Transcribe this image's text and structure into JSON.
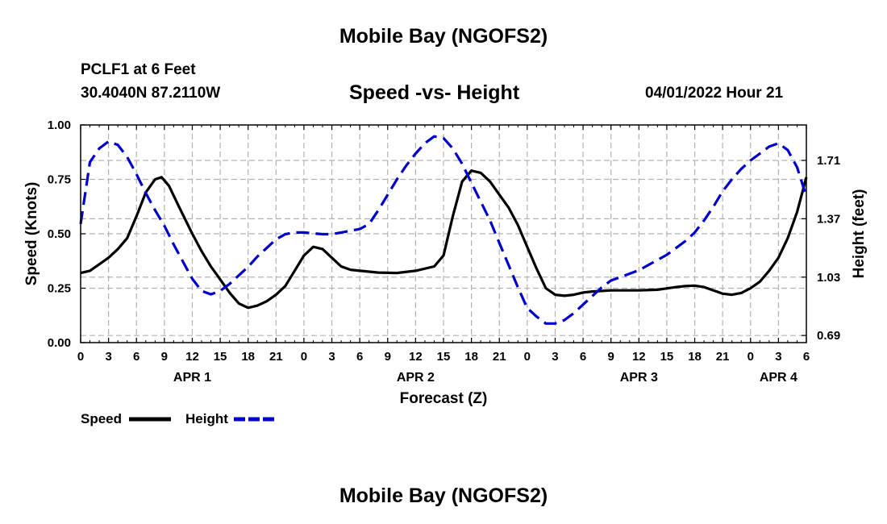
{
  "page": {
    "title": "Mobile Bay (NGOFS2)",
    "station": "PCLF1 at 6 Feet",
    "coordinates": "30.4040N  87.2110W",
    "subtitle": "Speed -vs- Height",
    "datetime": "04/01/2022 Hour 21",
    "footer_title": "Mobile Bay (NGOFS2)"
  },
  "chart_data": {
    "type": "line",
    "title": "Speed -vs- Height",
    "xlabel": "Forecast (Z)",
    "ylabel_left": "Speed (Knots)",
    "ylabel_right": "Height (feet)",
    "x_unit": "hours since 04/01/2022 00Z",
    "xlim": [
      0,
      78
    ],
    "ylim_left": [
      0,
      1.0
    ],
    "ylim_right": [
      0.6485,
      1.9165
    ],
    "x_ticks": [
      {
        "x": 0,
        "label": "0"
      },
      {
        "x": 3,
        "label": "3"
      },
      {
        "x": 6,
        "label": "6"
      },
      {
        "x": 9,
        "label": "9"
      },
      {
        "x": 12,
        "label": "12"
      },
      {
        "x": 15,
        "label": "15"
      },
      {
        "x": 18,
        "label": "18"
      },
      {
        "x": 21,
        "label": "21"
      },
      {
        "x": 24,
        "label": "0"
      },
      {
        "x": 27,
        "label": "3"
      },
      {
        "x": 30,
        "label": "6"
      },
      {
        "x": 33,
        "label": "9"
      },
      {
        "x": 36,
        "label": "12"
      },
      {
        "x": 39,
        "label": "15"
      },
      {
        "x": 42,
        "label": "18"
      },
      {
        "x": 45,
        "label": "21"
      },
      {
        "x": 48,
        "label": "0"
      },
      {
        "x": 51,
        "label": "3"
      },
      {
        "x": 54,
        "label": "6"
      },
      {
        "x": 57,
        "label": "9"
      },
      {
        "x": 60,
        "label": "12"
      },
      {
        "x": 63,
        "label": "15"
      },
      {
        "x": 66,
        "label": "18"
      },
      {
        "x": 69,
        "label": "21"
      },
      {
        "x": 72,
        "label": "0"
      },
      {
        "x": 75,
        "label": "3"
      },
      {
        "x": 78,
        "label": "6"
      }
    ],
    "day_labels": [
      {
        "x": 12,
        "label": "APR 1"
      },
      {
        "x": 36,
        "label": "APR 2"
      },
      {
        "x": 60,
        "label": "APR 3"
      },
      {
        "x": 75,
        "label": "APR 4"
      }
    ],
    "y_ticks_left": [
      {
        "v": 0,
        "label": "0.00"
      },
      {
        "v": 0.25,
        "label": "0.25"
      },
      {
        "v": 0.5,
        "label": "0.50"
      },
      {
        "v": 0.75,
        "label": "0.75"
      },
      {
        "v": 1.0,
        "label": "1.00"
      }
    ],
    "y_ticks_right": [
      {
        "v": 0.69,
        "label": "0.69"
      },
      {
        "v": 1.03,
        "label": "1.03"
      },
      {
        "v": 1.37,
        "label": "1.37"
      },
      {
        "v": 1.71,
        "label": "1.71"
      }
    ],
    "series": [
      {
        "name": "Speed",
        "axis": "left",
        "color": "#000000",
        "style": "solid",
        "points": [
          [
            0,
            0.32
          ],
          [
            1,
            0.33
          ],
          [
            2,
            0.36
          ],
          [
            3,
            0.39
          ],
          [
            4,
            0.43
          ],
          [
            5,
            0.48
          ],
          [
            6,
            0.58
          ],
          [
            7,
            0.69
          ],
          [
            8,
            0.75
          ],
          [
            8.7,
            0.76
          ],
          [
            9.5,
            0.72
          ],
          [
            10.5,
            0.63
          ],
          [
            12,
            0.5
          ],
          [
            13,
            0.42
          ],
          [
            14,
            0.35
          ],
          [
            15,
            0.29
          ],
          [
            16,
            0.23
          ],
          [
            17,
            0.18
          ],
          [
            18,
            0.16
          ],
          [
            19,
            0.17
          ],
          [
            20,
            0.19
          ],
          [
            21,
            0.22
          ],
          [
            22,
            0.26
          ],
          [
            23,
            0.33
          ],
          [
            24,
            0.4
          ],
          [
            25,
            0.44
          ],
          [
            26,
            0.43
          ],
          [
            27,
            0.39
          ],
          [
            28,
            0.35
          ],
          [
            29,
            0.335
          ],
          [
            30,
            0.33
          ],
          [
            32,
            0.322
          ],
          [
            34,
            0.32
          ],
          [
            36,
            0.33
          ],
          [
            38,
            0.35
          ],
          [
            39,
            0.4
          ],
          [
            40,
            0.58
          ],
          [
            41,
            0.74
          ],
          [
            42,
            0.79
          ],
          [
            43,
            0.78
          ],
          [
            44,
            0.74
          ],
          [
            45,
            0.68
          ],
          [
            46,
            0.62
          ],
          [
            47,
            0.54
          ],
          [
            48,
            0.44
          ],
          [
            49,
            0.34
          ],
          [
            50,
            0.25
          ],
          [
            51,
            0.22
          ],
          [
            52,
            0.215
          ],
          [
            53,
            0.22
          ],
          [
            54,
            0.23
          ],
          [
            55,
            0.235
          ],
          [
            57,
            0.24
          ],
          [
            60,
            0.24
          ],
          [
            62,
            0.243
          ],
          [
            64,
            0.255
          ],
          [
            65,
            0.26
          ],
          [
            66,
            0.262
          ],
          [
            67,
            0.255
          ],
          [
            68,
            0.24
          ],
          [
            69,
            0.225
          ],
          [
            70,
            0.22
          ],
          [
            71,
            0.228
          ],
          [
            72,
            0.25
          ],
          [
            73,
            0.28
          ],
          [
            74,
            0.33
          ],
          [
            75,
            0.39
          ],
          [
            76,
            0.48
          ],
          [
            77,
            0.6
          ],
          [
            78,
            0.76
          ]
        ]
      },
      {
        "name": "Height",
        "axis": "right",
        "color": "#0000cc",
        "style": "dashed",
        "points": [
          [
            0,
            1.34
          ],
          [
            1,
            1.7
          ],
          [
            2,
            1.78
          ],
          [
            3,
            1.82
          ],
          [
            4,
            1.8
          ],
          [
            5,
            1.73
          ],
          [
            6,
            1.63
          ],
          [
            7,
            1.52
          ],
          [
            8,
            1.42
          ],
          [
            9,
            1.33
          ],
          [
            10,
            1.22
          ],
          [
            11,
            1.12
          ],
          [
            12,
            1.02
          ],
          [
            13,
            0.95
          ],
          [
            14,
            0.93
          ],
          [
            15,
            0.95
          ],
          [
            16,
            0.99
          ],
          [
            17,
            1.04
          ],
          [
            18,
            1.09
          ],
          [
            19,
            1.15
          ],
          [
            20,
            1.2
          ],
          [
            21,
            1.25
          ],
          [
            22,
            1.28
          ],
          [
            23,
            1.29
          ],
          [
            24,
            1.29
          ],
          [
            25,
            1.285
          ],
          [
            26,
            1.28
          ],
          [
            27,
            1.28
          ],
          [
            28,
            1.29
          ],
          [
            29,
            1.3
          ],
          [
            30,
            1.31
          ],
          [
            31,
            1.34
          ],
          [
            32,
            1.42
          ],
          [
            33,
            1.51
          ],
          [
            34,
            1.6
          ],
          [
            35,
            1.68
          ],
          [
            36,
            1.75
          ],
          [
            37,
            1.81
          ],
          [
            38,
            1.85
          ],
          [
            39,
            1.84
          ],
          [
            40,
            1.78
          ],
          [
            41,
            1.69
          ],
          [
            42,
            1.58
          ],
          [
            43,
            1.47
          ],
          [
            44,
            1.36
          ],
          [
            45,
            1.23
          ],
          [
            46,
            1.1
          ],
          [
            47,
            0.97
          ],
          [
            48,
            0.85
          ],
          [
            49,
            0.8
          ],
          [
            50,
            0.76
          ],
          [
            51,
            0.76
          ],
          [
            52,
            0.78
          ],
          [
            53,
            0.82
          ],
          [
            54,
            0.87
          ],
          [
            55,
            0.92
          ],
          [
            56,
            0.97
          ],
          [
            57,
            1.01
          ],
          [
            58,
            1.03
          ],
          [
            59,
            1.05
          ],
          [
            60,
            1.07
          ],
          [
            61,
            1.1
          ],
          [
            62,
            1.13
          ],
          [
            63,
            1.16
          ],
          [
            64,
            1.2
          ],
          [
            65,
            1.24
          ],
          [
            66,
            1.29
          ],
          [
            67,
            1.36
          ],
          [
            68,
            1.44
          ],
          [
            69,
            1.53
          ],
          [
            70,
            1.6
          ],
          [
            71,
            1.66
          ],
          [
            72,
            1.71
          ],
          [
            73,
            1.75
          ],
          [
            74,
            1.79
          ],
          [
            75,
            1.81
          ],
          [
            76,
            1.77
          ],
          [
            77,
            1.67
          ],
          [
            78,
            1.5
          ]
        ]
      }
    ],
    "legend": {
      "placement": "bottom-left",
      "items": [
        {
          "label": "Speed",
          "color": "#000000",
          "style": "solid"
        },
        {
          "label": "Height",
          "color": "#0000cc",
          "style": "dashed"
        }
      ]
    }
  }
}
